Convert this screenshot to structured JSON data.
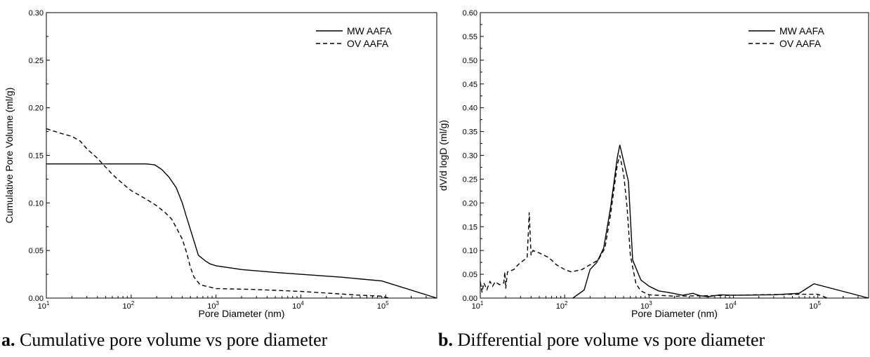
{
  "charts": [
    {
      "type": "line",
      "xlabel": "Pore Diameter (nm)",
      "ylabel": "Cumulative Pore Volume  (ml/g)",
      "x_scale": "log",
      "xlim": [
        10,
        400000
      ],
      "ylim": [
        0,
        0.3
      ],
      "y_ticks": [
        "0.00",
        "0.05",
        "0.10",
        "0.15",
        "0.20",
        "0.25",
        "0.30"
      ],
      "x_ticks": [
        {
          "base": "10",
          "exp": "1"
        },
        {
          "base": "10",
          "exp": "2"
        },
        {
          "base": "10",
          "exp": "3"
        },
        {
          "base": "10",
          "exp": "4"
        },
        {
          "base": "10",
          "exp": "5"
        }
      ],
      "legend_position": "top-right",
      "caption_letter": "a.",
      "caption_text": " Cumulative pore volume vs pore diameter"
    },
    {
      "type": "line",
      "xlabel": "Pore Diameter (nm)",
      "ylabel": "dV/d logD  (ml/g)",
      "x_scale": "log",
      "xlim": [
        10,
        400000
      ],
      "ylim": [
        0,
        0.6
      ],
      "y_ticks": [
        "0.00",
        "0.05",
        "0.10",
        "0.15",
        "0.20",
        "0.25",
        "0.30",
        "0.35",
        "0.40",
        "0.45",
        "0.50",
        "0.55",
        "0.60"
      ],
      "x_ticks": [
        {
          "base": "10",
          "exp": "1"
        },
        {
          "base": "10",
          "exp": "2"
        },
        {
          "base": "10",
          "exp": "3"
        },
        {
          "base": "10",
          "exp": "4"
        },
        {
          "base": "10",
          "exp": "5"
        }
      ],
      "legend_position": "top-right",
      "caption_letter": "b.",
      "caption_text": " Differential pore volume vs pore diameter"
    }
  ],
  "chart_data": [
    {
      "type": "line",
      "series": [
        {
          "name": "MW AAFA",
          "dash": "solid",
          "points": [
            [
              10,
              0.141
            ],
            [
              20,
              0.141
            ],
            [
              50,
              0.141
            ],
            [
              100,
              0.141
            ],
            [
              150,
              0.141
            ],
            [
              190,
              0.14
            ],
            [
              230,
              0.135
            ],
            [
              280,
              0.127
            ],
            [
              340,
              0.116
            ],
            [
              400,
              0.1
            ],
            [
              450,
              0.085
            ],
            [
              520,
              0.067
            ],
            [
              620,
              0.045
            ],
            [
              750,
              0.039
            ],
            [
              850,
              0.036
            ],
            [
              1000,
              0.034
            ],
            [
              2000,
              0.03
            ],
            [
              5000,
              0.027
            ],
            [
              10000,
              0.025
            ],
            [
              30000,
              0.022
            ],
            [
              90000,
              0.018
            ],
            [
              400000,
              0.0
            ]
          ]
        },
        {
          "name": "OV AAFA",
          "dash": "dashed",
          "points": [
            [
              10,
              0.178
            ],
            [
              15,
              0.173
            ],
            [
              20,
              0.17
            ],
            [
              25,
              0.165
            ],
            [
              30,
              0.157
            ],
            [
              40,
              0.147
            ],
            [
              60,
              0.13
            ],
            [
              80,
              0.12
            ],
            [
              100,
              0.113
            ],
            [
              150,
              0.104
            ],
            [
              200,
              0.097
            ],
            [
              250,
              0.09
            ],
            [
              300,
              0.083
            ],
            [
              350,
              0.072
            ],
            [
              400,
              0.062
            ],
            [
              450,
              0.048
            ],
            [
              500,
              0.032
            ],
            [
              550,
              0.022
            ],
            [
              650,
              0.014
            ],
            [
              800,
              0.012
            ],
            [
              1000,
              0.01
            ],
            [
              3000,
              0.009
            ],
            [
              10000,
              0.007
            ],
            [
              50000,
              0.003
            ],
            [
              90000,
              0.002
            ],
            [
              110000,
              0.0
            ]
          ]
        }
      ]
    },
    {
      "type": "line",
      "series": [
        {
          "name": "MW AAFA",
          "dash": "solid",
          "points": [
            [
              125,
              0.0
            ],
            [
              170,
              0.017
            ],
            [
              200,
              0.06
            ],
            [
              240,
              0.075
            ],
            [
              290,
              0.105
            ],
            [
              350,
              0.19
            ],
            [
              420,
              0.295
            ],
            [
              450,
              0.322
            ],
            [
              520,
              0.275
            ],
            [
              570,
              0.245
            ],
            [
              640,
              0.08
            ],
            [
              800,
              0.038
            ],
            [
              1000,
              0.025
            ],
            [
              1300,
              0.015
            ],
            [
              1700,
              0.012
            ],
            [
              2500,
              0.006
            ],
            [
              3300,
              0.01
            ],
            [
              4000,
              0.005
            ],
            [
              5000,
              0.003
            ],
            [
              7000,
              0.007
            ],
            [
              10000,
              0.006
            ],
            [
              30000,
              0.007
            ],
            [
              60000,
              0.01
            ],
            [
              90000,
              0.03
            ],
            [
              400000,
              0.0
            ]
          ]
        },
        {
          "name": "OV AAFA",
          "dash": "dashed",
          "points": [
            [
              10,
              0.035
            ],
            [
              10.5,
              0.012
            ],
            [
              11,
              0.032
            ],
            [
              12,
              0.018
            ],
            [
              13,
              0.035
            ],
            [
              14,
              0.025
            ],
            [
              15,
              0.034
            ],
            [
              17,
              0.028
            ],
            [
              19,
              0.032
            ],
            [
              19.5,
              0.055
            ],
            [
              20,
              0.02
            ],
            [
              21,
              0.055
            ],
            [
              25,
              0.06
            ],
            [
              28,
              0.07
            ],
            [
              33,
              0.08
            ],
            [
              36,
              0.085
            ],
            [
              38,
              0.18
            ],
            [
              40,
              0.09
            ],
            [
              42,
              0.1
            ],
            [
              50,
              0.095
            ],
            [
              65,
              0.085
            ],
            [
              80,
              0.07
            ],
            [
              100,
              0.06
            ],
            [
              120,
              0.055
            ],
            [
              160,
              0.06
            ],
            [
              200,
              0.07
            ],
            [
              250,
              0.08
            ],
            [
              300,
              0.105
            ],
            [
              350,
              0.175
            ],
            [
              420,
              0.28
            ],
            [
              450,
              0.3
            ],
            [
              500,
              0.26
            ],
            [
              550,
              0.19
            ],
            [
              600,
              0.09
            ],
            [
              700,
              0.03
            ],
            [
              800,
              0.015
            ],
            [
              1000,
              0.007
            ],
            [
              2000,
              0.004
            ],
            [
              5000,
              0.005
            ],
            [
              10000,
              0.006
            ],
            [
              50000,
              0.008
            ],
            [
              100000,
              0.008
            ],
            [
              130000,
              0.0
            ]
          ]
        }
      ]
    }
  ]
}
